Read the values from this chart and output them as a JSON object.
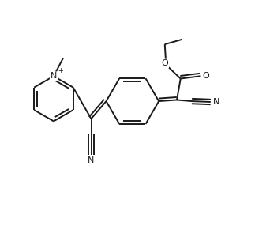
{
  "bg_color": "#ffffff",
  "line_color": "#1a1a1a",
  "line_width": 1.4,
  "font_size": 8.0,
  "fig_width": 3.23,
  "fig_height": 2.91,
  "dpi": 100,
  "xlim": [
    0,
    10
  ],
  "ylim": [
    0,
    9
  ]
}
